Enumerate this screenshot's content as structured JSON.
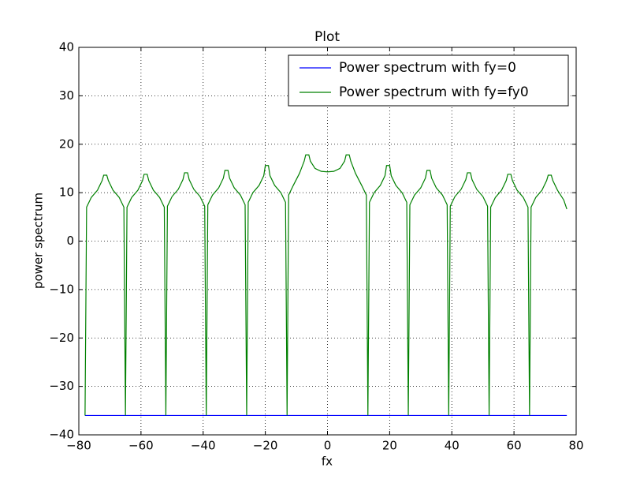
{
  "chart_data": {
    "type": "line",
    "title": "Plot",
    "x_label": "fx",
    "y_label": "power spectrum",
    "xlim": [
      -80,
      80
    ],
    "ylim": [
      -40,
      40
    ],
    "xticks": [
      {
        "value": -80,
        "label": "−80"
      },
      {
        "value": -60,
        "label": "−60"
      },
      {
        "value": -40,
        "label": "−40"
      },
      {
        "value": -20,
        "label": "−20"
      },
      0,
      20,
      40,
      60,
      80
    ],
    "yticks": [
      {
        "value": -40,
        "label": "−40"
      },
      {
        "value": -30,
        "label": "−30"
      },
      {
        "value": -20,
        "label": "−20"
      },
      {
        "value": -10,
        "label": "−10"
      },
      0,
      10,
      20,
      30,
      40
    ],
    "grid": true,
    "legend": "upper right",
    "series": [
      {
        "name": "Power spectrum with fy=0",
        "color": "#0000ff",
        "x": [
          -78,
          77
        ],
        "values": [
          -36,
          -36
        ]
      },
      {
        "name": "Power spectrum with fy=fy0",
        "color": "#008000",
        "x": [
          -78,
          -77.5,
          -76,
          -74,
          -72.5,
          -72,
          -71,
          -70.5,
          -69,
          -67,
          -65.5,
          -65,
          -64.5,
          -63,
          -61,
          -59.5,
          -59,
          -58,
          -57.5,
          -56,
          -54,
          -52.5,
          -52,
          -51.5,
          -50,
          -48,
          -46.5,
          -46,
          -45,
          -44.5,
          -43,
          -41,
          -39.5,
          -39,
          -38.5,
          -37,
          -35,
          -33.5,
          -33,
          -32,
          -31.5,
          -30,
          -28,
          -26.5,
          -26,
          -25.5,
          -24,
          -22,
          -20.5,
          -20,
          -19,
          -18.5,
          -17,
          -15,
          -13.5,
          -13,
          -12.5,
          -11,
          -9,
          -7.5,
          -7,
          -6,
          -5.5,
          -4,
          -2,
          0,
          2,
          4,
          5.5,
          6,
          7,
          7.5,
          9,
          11,
          12.5,
          13,
          13.5,
          15,
          17,
          18.5,
          19,
          20,
          20.5,
          22,
          24,
          25.5,
          26,
          26.5,
          28,
          30,
          31.5,
          32,
          33,
          33.5,
          35,
          37,
          38.5,
          39,
          39.5,
          41,
          43,
          44.5,
          45,
          46,
          46.5,
          48,
          50,
          51.5,
          52,
          52.5,
          54,
          56,
          57.5,
          58,
          59,
          59.5,
          61,
          63,
          64.5,
          65,
          65.5,
          67,
          69,
          70.5,
          71,
          72,
          72.5,
          74,
          76,
          77
        ],
        "values": [
          -36,
          7,
          9,
          10.5,
          12.5,
          13.6,
          13.6,
          12.5,
          10.5,
          9,
          7,
          -36,
          7,
          9,
          10.5,
          12.5,
          13.8,
          13.8,
          12.5,
          10.5,
          9,
          7,
          -36,
          7.2,
          9.2,
          10.7,
          12.7,
          14.1,
          14.1,
          12.7,
          10.7,
          9.2,
          7.2,
          -36,
          7.5,
          9.5,
          11,
          13,
          14.6,
          14.6,
          13,
          11,
          9.5,
          7.5,
          -36,
          8,
          10,
          11.5,
          13.5,
          15.6,
          15.6,
          13.5,
          11.5,
          10,
          8,
          -36,
          9.5,
          11.5,
          14,
          16.5,
          17.8,
          17.8,
          16.5,
          15,
          14.4,
          14.3,
          14.4,
          15,
          16.5,
          17.8,
          17.8,
          16.5,
          14,
          11.5,
          9.5,
          -36,
          8,
          10,
          11.5,
          13.5,
          15.6,
          15.6,
          13.5,
          11.5,
          10,
          8,
          -36,
          7.5,
          9.5,
          11,
          13,
          14.6,
          14.6,
          13,
          11,
          9.5,
          7.5,
          -36,
          7.2,
          9.2,
          10.7,
          12.7,
          14.1,
          14.1,
          12.7,
          10.7,
          9.2,
          7.2,
          -36,
          7,
          9,
          10.5,
          12.5,
          13.8,
          13.8,
          12.5,
          10.5,
          9,
          7,
          -36,
          7,
          9,
          10.5,
          12.5,
          13.6,
          13.6,
          12.5,
          10.5,
          8.5,
          6.6
        ]
      }
    ]
  }
}
